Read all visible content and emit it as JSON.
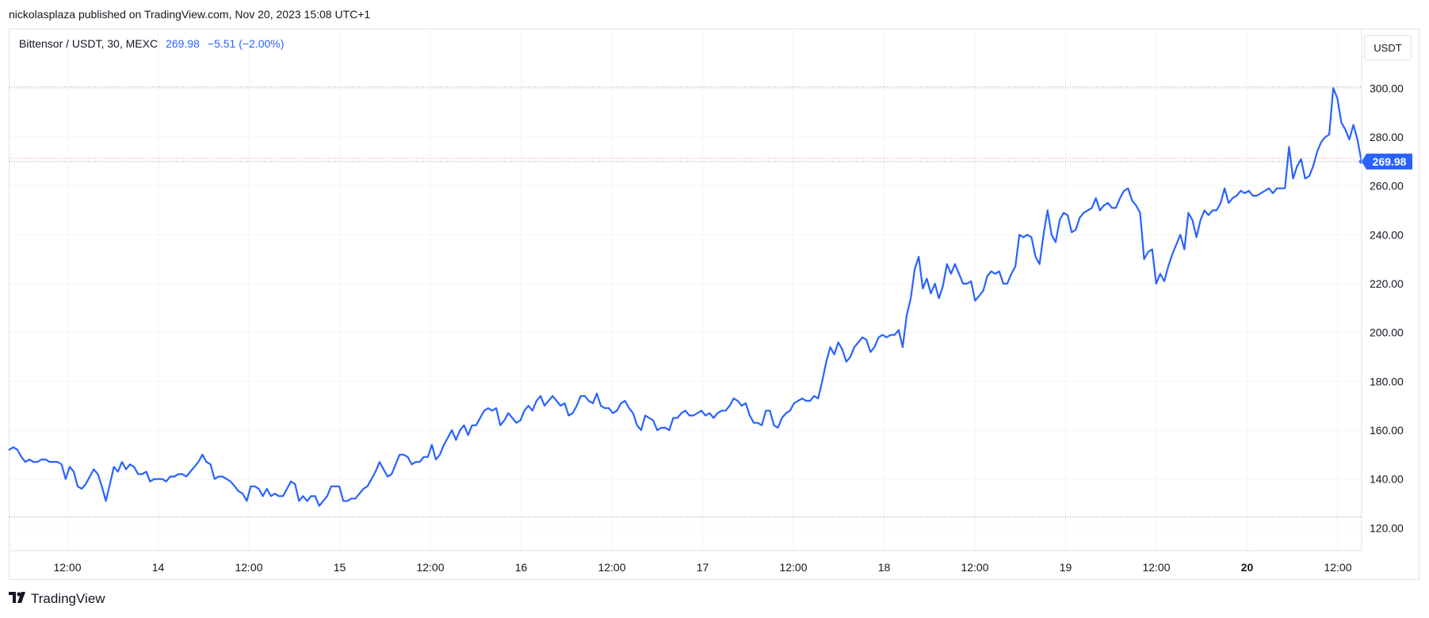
{
  "header": {
    "published": "nickolasplaza published on TradingView.com, Nov 20, 2023 15:08 UTC+1"
  },
  "legend": {
    "symbol": "Bittensor / USDT, 30, MEXC",
    "last": "269.98",
    "change": "−5.51 (−2.00%)"
  },
  "unit_button": "USDT",
  "footer": {
    "brand": "TradingView",
    "logo": "TV-logo-icon"
  },
  "colors": {
    "line": "#2962ff",
    "grid": "#f0f3fa",
    "price_tag": "#2962ff",
    "dotted_level": "#9598a1"
  },
  "chart_data": {
    "type": "line",
    "title": "Bittensor / USDT, 30, MEXC",
    "xlabel": "",
    "ylabel": "",
    "ylim": [
      111,
      316
    ],
    "x_ticks": [
      {
        "t": 0.5,
        "label": "12:00"
      },
      {
        "t": 1.0,
        "label": "14"
      },
      {
        "t": 1.5,
        "label": "12:00"
      },
      {
        "t": 2.0,
        "label": "15"
      },
      {
        "t": 2.5,
        "label": "12:00"
      },
      {
        "t": 3.0,
        "label": "16"
      },
      {
        "t": 3.5,
        "label": "12:00"
      },
      {
        "t": 4.0,
        "label": "17"
      },
      {
        "t": 4.5,
        "label": "12:00"
      },
      {
        "t": 5.0,
        "label": "18"
      },
      {
        "t": 5.5,
        "label": "12:00"
      },
      {
        "t": 6.0,
        "label": "19"
      },
      {
        "t": 6.5,
        "label": "12:00"
      },
      {
        "t": 7.0,
        "label": "20",
        "bold": true
      },
      {
        "t": 7.5,
        "label": "12:00"
      }
    ],
    "y_ticks": [
      "120.00",
      "140.00",
      "160.00",
      "180.00",
      "200.00",
      "220.00",
      "240.00",
      "260.00",
      "280.00",
      "300.00"
    ],
    "y_tick_values": [
      120,
      140,
      160,
      180,
      200,
      220,
      240,
      260,
      280,
      300
    ],
    "last_price": 269.98,
    "last_price_label": "269.98",
    "dotted_levels": [
      300.5,
      269.98,
      124.5
    ],
    "x_start": 0.18,
    "x_end": 7.63,
    "series": [
      {
        "values": [
          152,
          153,
          152,
          149,
          147,
          148,
          147,
          147,
          148,
          148,
          147,
          147,
          147,
          146,
          140,
          145,
          143,
          137,
          136,
          138,
          141,
          144,
          142,
          137,
          131,
          138,
          145,
          143,
          147,
          144,
          146,
          145,
          142,
          142,
          143,
          139,
          140,
          140,
          140,
          139,
          141,
          141,
          142,
          142,
          141,
          143,
          145,
          147,
          150,
          147,
          146,
          140,
          141,
          141,
          140,
          139,
          137,
          135,
          134,
          131,
          137,
          137,
          136,
          133,
          136,
          133,
          134,
          133,
          133,
          136,
          139,
          138,
          131,
          133,
          131,
          133,
          133,
          129,
          131,
          133,
          137,
          137,
          137,
          131,
          131,
          132,
          132,
          134,
          136,
          137,
          140,
          143,
          147,
          144,
          141,
          142,
          146,
          150,
          150,
          149,
          146,
          147,
          147,
          149,
          149,
          154,
          148,
          150,
          154,
          157,
          160,
          156,
          160,
          162,
          158,
          162,
          162,
          165,
          168,
          169,
          168,
          169,
          162,
          164,
          167,
          165,
          163,
          164,
          168,
          170,
          168,
          172,
          174,
          170,
          172,
          174,
          172,
          170,
          171,
          166,
          167,
          170,
          174,
          174,
          172,
          171,
          175,
          170,
          169,
          169,
          167,
          168,
          171,
          172,
          169,
          167,
          162,
          160,
          166,
          165,
          164,
          160,
          161,
          161,
          160,
          165,
          165,
          167,
          168,
          166,
          166,
          167,
          168,
          166,
          167,
          165,
          167,
          168,
          168,
          170,
          173,
          172,
          170,
          171,
          166,
          163,
          163,
          162,
          168,
          168,
          162,
          161,
          165,
          167,
          168,
          171,
          172,
          173,
          172,
          172,
          174,
          173,
          180,
          188,
          194,
          191,
          196,
          193,
          188,
          190,
          194,
          196,
          198,
          197,
          192,
          194,
          198,
          199,
          198,
          199,
          199,
          201,
          194,
          207,
          214,
          226,
          231,
          218,
          222,
          216,
          220,
          214,
          219,
          228,
          224,
          228,
          224,
          220,
          220,
          221,
          213,
          215,
          217,
          223,
          225,
          224,
          225,
          220,
          220,
          224,
          227,
          240,
          239,
          240,
          239,
          231,
          228,
          240,
          250,
          240,
          237,
          246,
          249,
          248,
          241,
          242,
          247,
          249,
          250,
          251,
          255,
          250,
          252,
          253,
          251,
          251,
          255,
          258,
          259,
          254,
          252,
          249,
          230,
          233,
          234,
          220,
          224,
          221,
          227,
          232,
          236,
          240,
          234,
          249,
          246,
          239,
          246,
          250,
          248,
          250,
          250,
          253,
          259,
          253,
          255,
          256,
          258,
          257,
          258,
          256,
          256,
          257,
          258,
          259,
          257,
          259,
          259,
          259,
          276,
          263,
          268,
          271,
          263,
          264,
          268,
          274,
          278,
          280,
          281,
          300,
          296,
          286,
          283,
          279,
          285,
          279,
          270
        ]
      }
    ]
  }
}
